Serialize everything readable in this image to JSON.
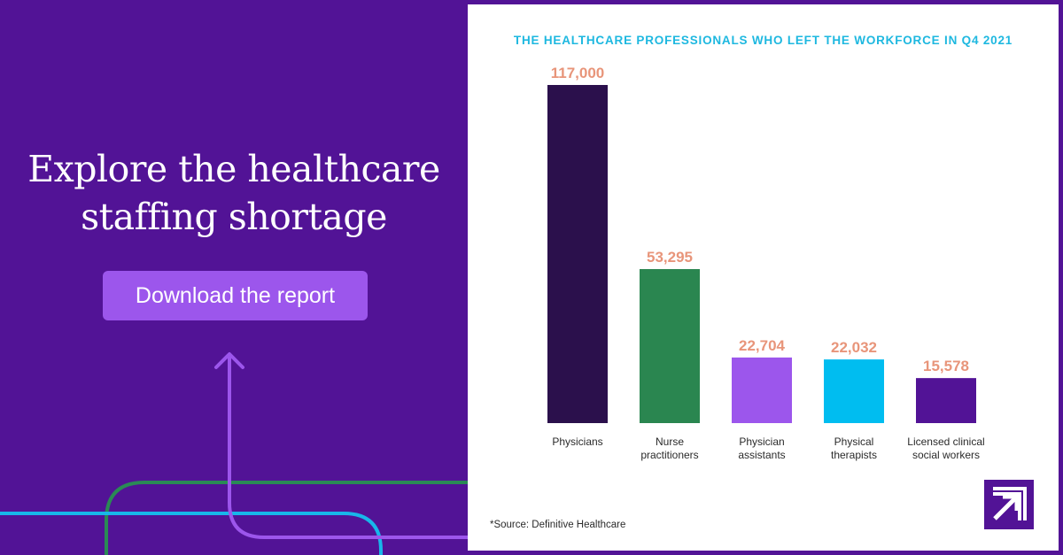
{
  "hero": {
    "headline_line1": "Explore the healthcare",
    "headline_line2": "staffing shortage",
    "cta_label": "Download the report"
  },
  "colors": {
    "background": "#521396",
    "button": "#9c56ec",
    "title": "#1eb8e0",
    "value_labels": "#e8957a",
    "deco_green": "#2a8a55",
    "deco_cyan": "#18b6ea",
    "deco_violet": "#9c56ec"
  },
  "chart_data": {
    "type": "bar",
    "title": "THE HEALTHCARE PROFESSIONALS WHO LEFT THE WORKFORCE IN Q4 2021",
    "xlabel": "",
    "ylabel": "",
    "ylim": [
      0,
      117000
    ],
    "grid": false,
    "legend": "none",
    "categories": [
      [
        "Physicians"
      ],
      [
        "Nurse",
        "practitioners"
      ],
      [
        "Physician",
        "assistants"
      ],
      [
        "Physical",
        "therapists"
      ],
      [
        "Licensed clinical",
        "social workers"
      ]
    ],
    "values": [
      117000,
      53295,
      22704,
      22032,
      15578
    ],
    "value_labels": [
      "117,000",
      "53,295",
      "22,704",
      "22,032",
      "15,578"
    ],
    "bar_colors": [
      "#2b104c",
      "#2a8650",
      "#9c56ec",
      "#00bdf0",
      "#521396"
    ]
  },
  "source_note": "*Source: Definitive Healthcare",
  "logo_icon": "arrow-logo-icon"
}
